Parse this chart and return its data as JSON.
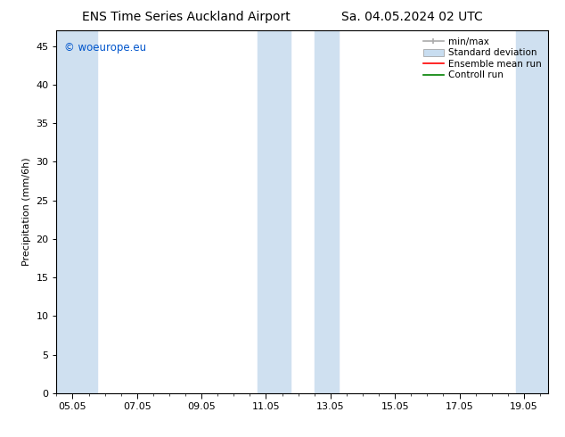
{
  "title_left": "ENS Time Series Auckland Airport",
  "title_right": "Sa. 04.05.2024 02 UTC",
  "ylabel": "Precipitation (mm/6h)",
  "xlim": [
    4.5,
    19.75
  ],
  "ylim": [
    0,
    47
  ],
  "yticks": [
    0,
    5,
    10,
    15,
    20,
    25,
    30,
    35,
    40,
    45
  ],
  "xtick_labels": [
    "05.05",
    "07.05",
    "09.05",
    "11.05",
    "13.05",
    "15.05",
    "17.05",
    "19.05"
  ],
  "xtick_positions": [
    5,
    7,
    9,
    11,
    13,
    15,
    17,
    19
  ],
  "shaded_bands": [
    {
      "x_start": 4.5,
      "x_end": 5.75
    },
    {
      "x_start": 10.75,
      "x_end": 11.75
    },
    {
      "x_start": 12.5,
      "x_end": 13.25
    },
    {
      "x_start": 18.75,
      "x_end": 19.75
    }
  ],
  "shade_color": "#cfe0f0",
  "background_color": "#ffffff",
  "copyright_text": "© woeurope.eu",
  "copyright_color": "#0055cc",
  "legend_labels": [
    "min/max",
    "Standard deviation",
    "Ensemble mean run",
    "Controll run"
  ],
  "legend_colors": [
    "#aaaaaa",
    "#c8ddf0",
    "#ff0000",
    "#008000"
  ],
  "title_fontsize": 10,
  "label_fontsize": 8,
  "tick_fontsize": 8,
  "legend_fontsize": 7.5
}
